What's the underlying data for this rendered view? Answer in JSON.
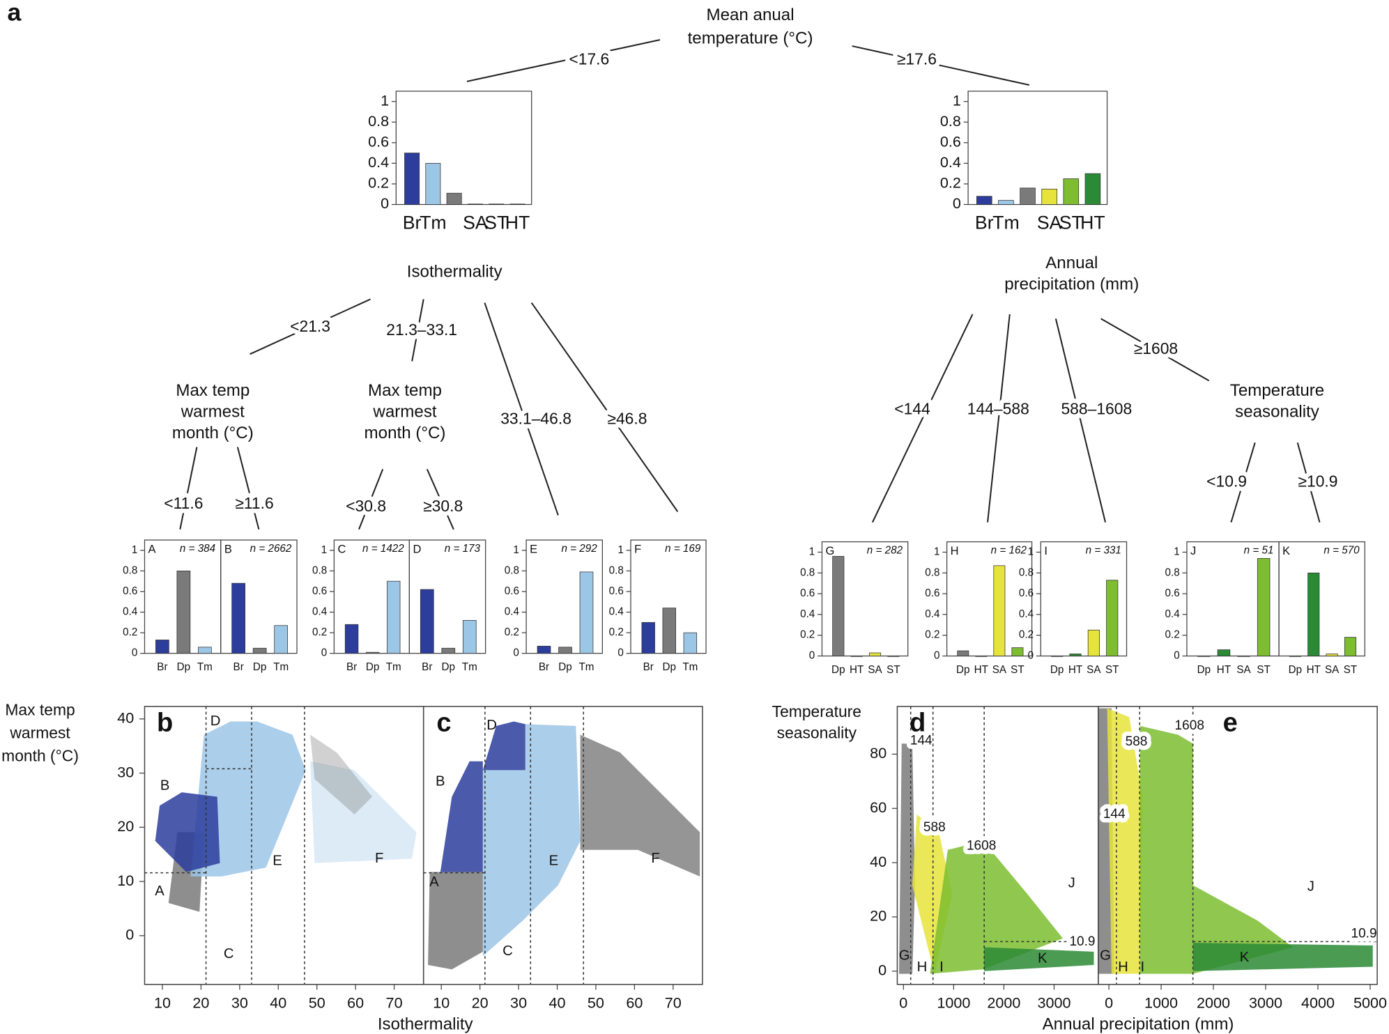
{
  "figure_label": "a",
  "tree": {
    "nodes": [
      {
        "lines": [
          "Mean anual",
          "temperature (°C)"
        ]
      },
      {
        "lines": [
          "Isothermality"
        ]
      },
      {
        "lines": [
          "Annual",
          "precipitation (mm)"
        ]
      },
      {
        "lines": [
          "Max temp",
          "warmest",
          "month (°C)"
        ]
      },
      {
        "lines": [
          "Max temp",
          "warmest",
          "month (°C)"
        ]
      },
      {
        "lines": [
          "Temperature",
          "seasonality"
        ]
      }
    ],
    "edge_labels": [
      "<17.6",
      "≥17.6",
      "<21.3",
      "21.3–33.1",
      "33.1–46.8",
      "≥46.8",
      "<11.6",
      "≥11.6",
      "<30.8",
      "≥30.8",
      "<144",
      "144–588",
      "588–1608",
      "≥1608",
      "<10.9",
      "≥10.9"
    ]
  },
  "chart_data": [
    {
      "type": "bar",
      "categories": [
        "Br",
        "Tm",
        null,
        "SA",
        "ST",
        "HT"
      ],
      "values": [
        0.5,
        0.4,
        0.11,
        0.005,
        0.005,
        0.005
      ],
      "colors": [
        "#2c3d9c",
        "#9cc6e6",
        "#7a7a7a",
        "#e6e43c",
        "#7dbd2f",
        "#2b8a35"
      ],
      "ylim": [
        0,
        1.1
      ],
      "yticks": [
        0,
        0.2,
        0.4,
        0.6,
        0.8,
        1
      ]
    },
    {
      "type": "bar",
      "categories": [
        "Br",
        "Tm",
        null,
        "SA",
        "ST",
        "HT"
      ],
      "values": [
        0.08,
        0.04,
        0.16,
        0.15,
        0.25,
        0.3
      ],
      "colors": [
        "#2c3d9c",
        "#9cc6e6",
        "#7a7a7a",
        "#e6e43c",
        "#7dbd2f",
        "#2b8a35"
      ],
      "ylim": [
        0,
        1.1
      ],
      "yticks": [
        0,
        0.2,
        0.4,
        0.6,
        0.8,
        1
      ]
    },
    {
      "type": "bar",
      "panel": "A",
      "n_label": "n = 384",
      "categories": [
        "Br",
        "Dp",
        "Tm"
      ],
      "values": [
        0.13,
        0.8,
        0.06
      ],
      "colors": [
        "#2c3d9c",
        "#7a7a7a",
        "#9cc6e6"
      ],
      "ylim": [
        0,
        1.1
      ],
      "yticks": [
        0,
        0.2,
        0.4,
        0.6,
        0.8,
        1
      ]
    },
    {
      "type": "bar",
      "panel": "B",
      "n_label": "n = 2662",
      "categories": [
        "Br",
        "Dp",
        "Tm"
      ],
      "values": [
        0.68,
        0.05,
        0.27
      ],
      "colors": [
        "#2c3d9c",
        "#7a7a7a",
        "#9cc6e6"
      ],
      "ylim": [
        0,
        1.1
      ]
    },
    {
      "type": "bar",
      "panel": "C",
      "n_label": "n = 1422",
      "categories": [
        "Br",
        "Dp",
        "Tm"
      ],
      "values": [
        0.28,
        0.01,
        0.7
      ],
      "colors": [
        "#2c3d9c",
        "#7a7a7a",
        "#9cc6e6"
      ],
      "ylim": [
        0,
        1.1
      ],
      "yticks": [
        0,
        0.2,
        0.4,
        0.6,
        0.8,
        1
      ]
    },
    {
      "type": "bar",
      "panel": "D",
      "n_label": "n = 173",
      "categories": [
        "Br",
        "Dp",
        "Tm"
      ],
      "values": [
        0.62,
        0.05,
        0.32
      ],
      "colors": [
        "#2c3d9c",
        "#7a7a7a",
        "#9cc6e6"
      ],
      "ylim": [
        0,
        1.1
      ]
    },
    {
      "type": "bar",
      "panel": "E",
      "n_label": "n = 292",
      "categories": [
        "Br",
        "Dp",
        "Tm"
      ],
      "values": [
        0.07,
        0.06,
        0.79
      ],
      "colors": [
        "#2c3d9c",
        "#7a7a7a",
        "#9cc6e6"
      ],
      "ylim": [
        0,
        1.1
      ],
      "yticks": [
        0,
        0.2,
        0.4,
        0.6,
        0.8,
        1
      ]
    },
    {
      "type": "bar",
      "panel": "F",
      "n_label": "n = 169",
      "categories": [
        "Br",
        "Dp",
        "Tm"
      ],
      "values": [
        0.3,
        0.44,
        0.2
      ],
      "colors": [
        "#2c3d9c",
        "#7a7a7a",
        "#9cc6e6"
      ],
      "ylim": [
        0,
        1.1
      ],
      "yticks": [
        0,
        0.2,
        0.4,
        0.6,
        0.8,
        1
      ]
    },
    {
      "type": "bar",
      "panel": "G",
      "n_label": "n = 282",
      "categories": [
        "Dp",
        "HT",
        "SA",
        "ST"
      ],
      "values": [
        0.96,
        0,
        0.03,
        0
      ],
      "colors": [
        "#7a7a7a",
        "#2b8a35",
        "#e6e43c",
        "#7dbd2f"
      ],
      "ylim": [
        0,
        1.1
      ],
      "yticks": [
        0,
        0.2,
        0.4,
        0.6,
        0.8,
        1
      ]
    },
    {
      "type": "bar",
      "panel": "H",
      "n_label": "n = 162",
      "categories": [
        "Dp",
        "HT",
        "SA",
        "ST"
      ],
      "values": [
        0.05,
        0,
        0.87,
        0.08
      ],
      "colors": [
        "#7a7a7a",
        "#2b8a35",
        "#e6e43c",
        "#7dbd2f"
      ],
      "ylim": [
        0,
        1.1
      ],
      "yticks": [
        0,
        0.2,
        0.4,
        0.6,
        0.8,
        1
      ]
    },
    {
      "type": "bar",
      "panel": "I",
      "n_label": "n = 331",
      "categories": [
        "Dp",
        "HT",
        "SA",
        "ST"
      ],
      "values": [
        0,
        0.02,
        0.25,
        0.73
      ],
      "colors": [
        "#7a7a7a",
        "#2b8a35",
        "#e6e43c",
        "#7dbd2f"
      ],
      "ylim": [
        0,
        1.1
      ],
      "yticks": [
        0,
        0.2,
        0.4,
        0.6,
        0.8,
        1
      ]
    },
    {
      "type": "bar",
      "panel": "J",
      "n_label": "n = 51",
      "categories": [
        "Dp",
        "HT",
        "SA",
        "ST"
      ],
      "values": [
        0,
        0.06,
        0,
        0.94
      ],
      "colors": [
        "#7a7a7a",
        "#2b8a35",
        "#e6e43c",
        "#7dbd2f"
      ],
      "ylim": [
        0,
        1.1
      ],
      "yticks": [
        0,
        0.2,
        0.4,
        0.6,
        0.8,
        1
      ]
    },
    {
      "type": "bar",
      "panel": "K",
      "n_label": "n = 570",
      "categories": [
        "Dp",
        "HT",
        "SA",
        "ST"
      ],
      "values": [
        0,
        0.8,
        0.02,
        0.18
      ],
      "colors": [
        "#7a7a7a",
        "#2b8a35",
        "#e6e43c",
        "#7dbd2f"
      ],
      "ylim": [
        0,
        1.1
      ]
    },
    {
      "type": "scatter",
      "panel": "b",
      "xlabel": "Isothermality",
      "ylabel": [
        "Max temp",
        "warmest",
        "month (°C)"
      ],
      "xlim": [
        5.4,
        77.6
      ],
      "ylim": [
        -9,
        42.3
      ],
      "xticks": [
        10,
        20,
        30,
        40,
        50,
        60,
        70
      ],
      "yticks": [
        0,
        10,
        20,
        30,
        40
      ],
      "region_labels": [
        "A",
        "B",
        "C",
        "D",
        "E",
        "F"
      ],
      "thresholds": [
        {
          "axis": "x",
          "value": 21.3
        },
        {
          "axis": "x",
          "value": 33.1
        },
        {
          "axis": "x",
          "value": 46.8
        },
        {
          "axis": "y",
          "value": 11.6
        },
        {
          "axis": "y",
          "value": 30.8
        }
      ]
    },
    {
      "type": "scatter",
      "panel": "c",
      "xlim": [
        5.4,
        77.6
      ],
      "ylim": [
        -9,
        42.3
      ],
      "xticks": [
        10,
        20,
        30,
        40,
        50,
        60,
        70
      ],
      "region_labels": [
        "A",
        "B",
        "C",
        "D",
        "E",
        "F"
      ],
      "thresholds": [
        {
          "axis": "x",
          "value": 21.3
        },
        {
          "axis": "x",
          "value": 33.1
        },
        {
          "axis": "x",
          "value": 46.8
        },
        {
          "axis": "y",
          "value": 11.6
        }
      ]
    },
    {
      "type": "scatter",
      "panel": "d",
      "xlabel": "Annual precipitation (mm)",
      "ylabel": [
        "Temperature",
        "seasonality"
      ],
      "xlim": [
        -123,
        3880
      ],
      "ylim": [
        -4.9,
        97.6
      ],
      "xticks": [
        0,
        1000,
        2000,
        3000
      ],
      "yticks": [
        0,
        20,
        40,
        60,
        80
      ],
      "region_labels": [
        "G",
        "H",
        "I",
        "J",
        "K"
      ],
      "thresholds": [
        {
          "axis": "x",
          "value": 144,
          "labeled": true
        },
        {
          "axis": "x",
          "value": 588,
          "labeled": true
        },
        {
          "axis": "x",
          "value": 1608,
          "labeled": true
        },
        {
          "axis": "y",
          "value": 10.9,
          "labeled": true
        }
      ]
    },
    {
      "type": "scatter",
      "panel": "e",
      "xlim": [
        -203,
        5135
      ],
      "ylim": [
        -4.9,
        97.6
      ],
      "xticks": [
        0,
        1000,
        2000,
        3000,
        4000,
        5000
      ],
      "region_labels": [
        "G",
        "H",
        "I",
        "J",
        "K"
      ],
      "thresholds": [
        {
          "axis": "x",
          "value": 144,
          "labeled": true
        },
        {
          "axis": "x",
          "value": 588,
          "labeled": true
        },
        {
          "axis": "x",
          "value": 1608,
          "labeled": true
        },
        {
          "axis": "y",
          "value": 10.9,
          "labeled": true
        }
      ]
    }
  ]
}
